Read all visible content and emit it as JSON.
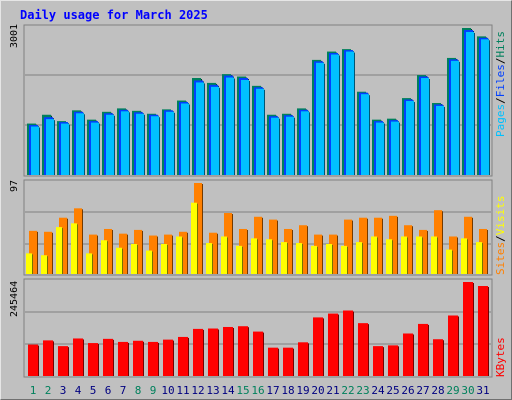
{
  "title": "Daily usage for March 2025",
  "colors": {
    "hits": "#00805c",
    "files": "#0040ff",
    "pages": "#00c0ff",
    "visits": "#ff8000",
    "sites": "#ffff00",
    "kbytes": "#ff0000",
    "panel": "#c0c0c0",
    "title": "#0000ff",
    "weekend_label": "#00805c",
    "weekday_label": "#000080"
  },
  "legend": {
    "top": [
      "Pages",
      "/",
      "Files",
      "/",
      "Hits"
    ],
    "middle": [
      "Sites",
      "/",
      "Visits"
    ],
    "bottom": [
      "KBytes"
    ]
  },
  "axis_max_labels": {
    "top": "3001",
    "middle": "97",
    "bottom": "245464"
  },
  "chart_data": [
    {
      "type": "bar",
      "title": "Daily usage for March 2025",
      "ylabel": "Pages / Files / Hits",
      "ylim": [
        0,
        3001
      ],
      "categories": [
        "1",
        "2",
        "3",
        "4",
        "5",
        "6",
        "7",
        "8",
        "9",
        "10",
        "11",
        "12",
        "13",
        "14",
        "15",
        "16",
        "17",
        "18",
        "19",
        "20",
        "21",
        "22",
        "23",
        "24",
        "25",
        "26",
        "27",
        "28",
        "29",
        "30",
        "31"
      ],
      "series": [
        {
          "name": "Hits",
          "values": [
            1050,
            1230,
            1100,
            1320,
            1130,
            1290,
            1360,
            1310,
            1250,
            1340,
            1520,
            1980,
            1880,
            2060,
            2010,
            1820,
            1230,
            1250,
            1360,
            2350,
            2520,
            2570,
            1700,
            1130,
            1150,
            1570,
            2040,
            1470,
            2390,
            3001,
            2830
          ]
        },
        {
          "name": "Files",
          "values": [
            1020,
            1180,
            1080,
            1290,
            1100,
            1260,
            1330,
            1280,
            1230,
            1320,
            1490,
            1930,
            1840,
            2030,
            1980,
            1790,
            1200,
            1220,
            1330,
            2320,
            2490,
            2550,
            1680,
            1100,
            1120,
            1540,
            2010,
            1440,
            2360,
            2960,
            2800
          ]
        },
        {
          "name": "Pages",
          "values": [
            990,
            1140,
            1050,
            1260,
            1070,
            1230,
            1300,
            1250,
            1200,
            1290,
            1460,
            1890,
            1800,
            1990,
            1940,
            1760,
            1170,
            1190,
            1300,
            2290,
            2460,
            2520,
            1650,
            1070,
            1090,
            1510,
            1980,
            1410,
            2330,
            2920,
            2770
          ]
        }
      ]
    },
    {
      "type": "bar",
      "ylabel": "Sites / Visits",
      "ylim": [
        0,
        97
      ],
      "categories": [
        "1",
        "2",
        "3",
        "4",
        "5",
        "6",
        "7",
        "8",
        "9",
        "10",
        "11",
        "12",
        "13",
        "14",
        "15",
        "16",
        "17",
        "18",
        "19",
        "20",
        "21",
        "22",
        "23",
        "24",
        "25",
        "26",
        "27",
        "28",
        "29",
        "30",
        "31"
      ],
      "series": [
        {
          "name": "Visits",
          "values": [
            46,
            45,
            60,
            70,
            42,
            48,
            43,
            47,
            41,
            42,
            45,
            97,
            44,
            65,
            48,
            61,
            58,
            48,
            52,
            42,
            42,
            58,
            60,
            60,
            62,
            52,
            47,
            68,
            40,
            61,
            48
          ]
        },
        {
          "name": "Sites",
          "values": [
            22,
            20,
            50,
            54,
            22,
            36,
            28,
            32,
            25,
            32,
            40,
            76,
            33,
            40,
            30,
            38,
            37,
            34,
            33,
            30,
            32,
            30,
            34,
            40,
            37,
            40,
            40,
            40,
            26,
            38,
            34
          ]
        }
      ]
    },
    {
      "type": "bar",
      "ylabel": "KBytes",
      "ylim": [
        0,
        245464
      ],
      "categories": [
        "1",
        "2",
        "3",
        "4",
        "5",
        "6",
        "7",
        "8",
        "9",
        "10",
        "11",
        "12",
        "13",
        "14",
        "15",
        "16",
        "17",
        "18",
        "19",
        "20",
        "21",
        "22",
        "23",
        "24",
        "25",
        "26",
        "27",
        "28",
        "29",
        "30",
        "31"
      ],
      "series": [
        {
          "name": "KBytes",
          "values": [
            82000,
            93000,
            78000,
            98000,
            86000,
            97000,
            89000,
            92000,
            89000,
            95000,
            102000,
            123000,
            124000,
            128000,
            130000,
            116000,
            74000,
            74000,
            88000,
            153000,
            163000,
            171000,
            138000,
            78000,
            80000,
            111000,
            136000,
            96000,
            158000,
            245464,
            235000
          ]
        }
      ]
    }
  ],
  "x_labels": [
    "1",
    "2",
    "3",
    "4",
    "5",
    "6",
    "7",
    "8",
    "9",
    "10",
    "11",
    "12",
    "13",
    "14",
    "15",
    "16",
    "17",
    "18",
    "19",
    "20",
    "21",
    "22",
    "23",
    "24",
    "25",
    "26",
    "27",
    "28",
    "29",
    "30",
    "31"
  ],
  "weekend_days": [
    1,
    2,
    8,
    9,
    15,
    16,
    22,
    23,
    29,
    30
  ]
}
